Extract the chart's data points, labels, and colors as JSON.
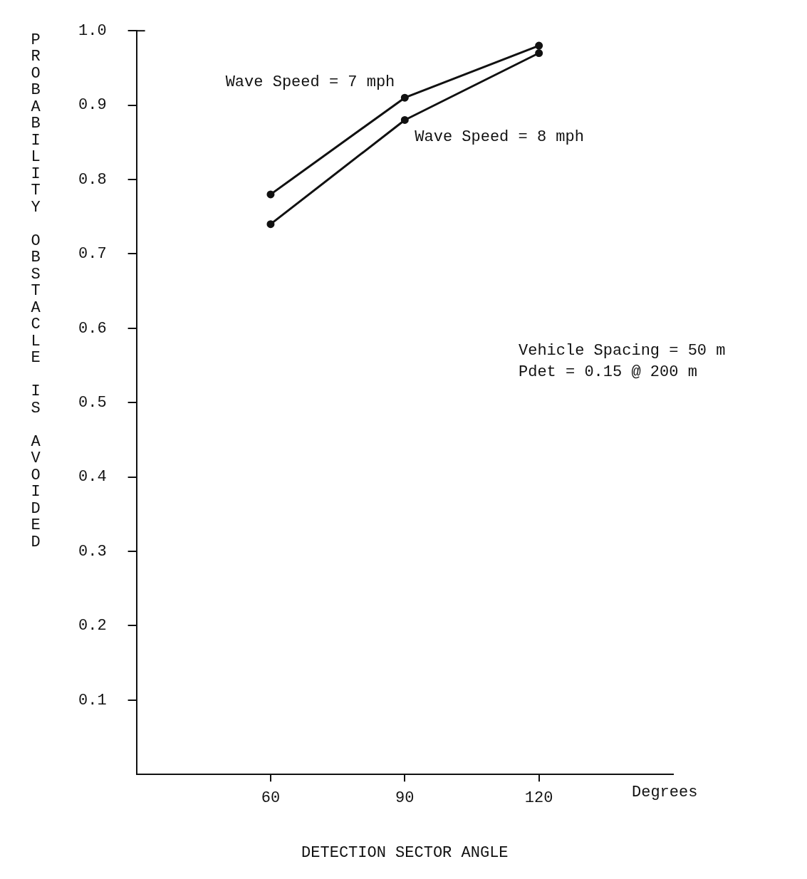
{
  "chart_data": {
    "type": "line",
    "xlabel": "DETECTION SECTOR ANGLE",
    "ylabel": "PROBABILITY OBSTACLE IS AVOIDED",
    "x": [
      60,
      90,
      120
    ],
    "series": [
      {
        "name": "Wave Speed = 7 mph",
        "color": "#111111",
        "values": [
          0.78,
          0.91,
          0.98
        ]
      },
      {
        "name": "Wave Speed = 8 mph",
        "color": "#111111",
        "values": [
          0.74,
          0.88,
          0.97
        ]
      }
    ],
    "xlim": [
      30,
      150
    ],
    "xticks": [
      60,
      90,
      120
    ],
    "ylim": [
      0,
      1.0
    ],
    "yticks": [
      {
        "value": 0.1,
        "label": "0.1"
      },
      {
        "value": 0.2,
        "label": "0.2"
      },
      {
        "value": 0.3,
        "label": "0.3"
      },
      {
        "value": 0.4,
        "label": "0.4"
      },
      {
        "value": 0.5,
        "label": "0.5"
      },
      {
        "value": 0.6,
        "label": "0.6"
      },
      {
        "value": 0.7,
        "label": "0.7"
      },
      {
        "value": 0.8,
        "label": "0.8"
      },
      {
        "value": 0.9,
        "label": "0.9"
      },
      {
        "value": 1.0,
        "label": "1.0"
      }
    ],
    "annotations": [
      "Degrees",
      "Vehicle Spacing = 50 m",
      "Pdet = 0.15 @ 200 m"
    ],
    "grid": false,
    "legend": false,
    "marker": "circle",
    "line_style": "solid"
  }
}
